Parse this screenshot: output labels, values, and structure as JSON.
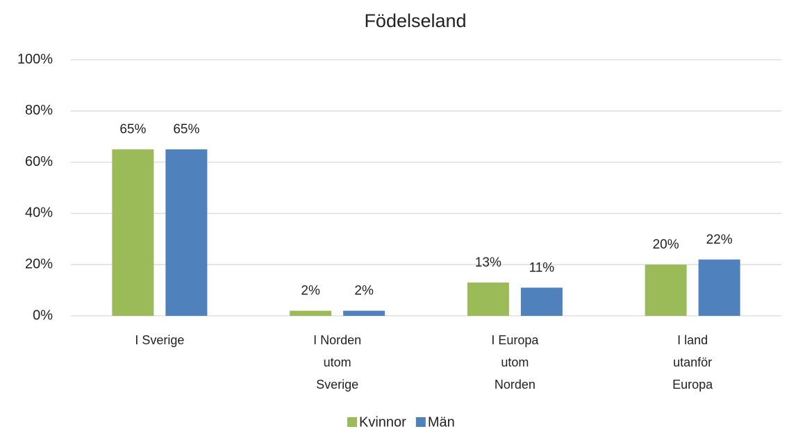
{
  "chart_data": {
    "type": "bar",
    "title": "Födelseland",
    "categories": [
      "I Sverige",
      "I Norden utom Sverige",
      "I Europa utom Norden",
      "I land utanför Europa"
    ],
    "series": [
      {
        "name": "Kvinnor",
        "color": "#9bbb59",
        "values": [
          65,
          2,
          13,
          20
        ],
        "value_labels": [
          "65%",
          "2%",
          "13%",
          "20%"
        ]
      },
      {
        "name": "Män",
        "color": "#4f81bd",
        "values": [
          65,
          2,
          11,
          22
        ],
        "value_labels": [
          "65%",
          "2%",
          "11%",
          "22%"
        ]
      }
    ],
    "ylim": [
      0,
      100
    ],
    "yticks": [
      {
        "value": 0,
        "label": "0%"
      },
      {
        "value": 20,
        "label": "20%"
      },
      {
        "value": 40,
        "label": "40%"
      },
      {
        "value": 60,
        "label": "60%"
      },
      {
        "value": 80,
        "label": "80%"
      },
      {
        "value": 100,
        "label": "100%"
      }
    ],
    "grid": true,
    "legend": "bottom"
  }
}
